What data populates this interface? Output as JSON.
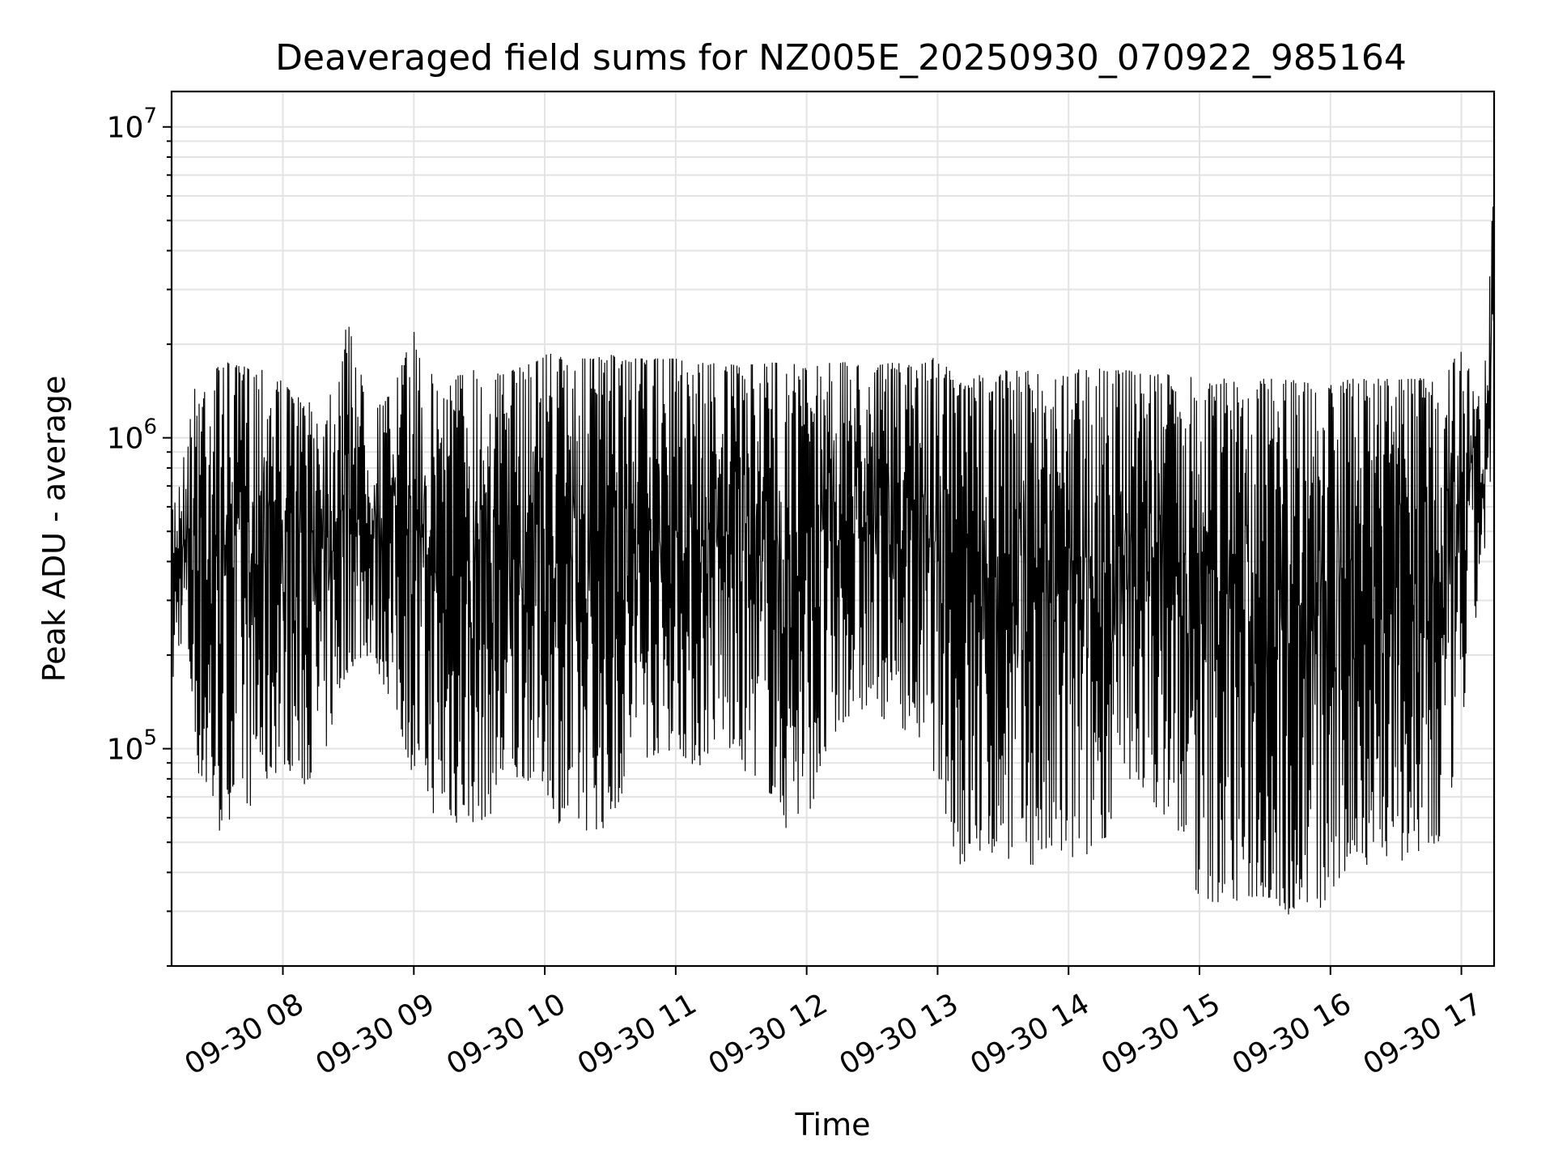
{
  "chart_data": {
    "type": "line",
    "title": "Deaveraged field sums for NZ005E_20250930_070922_985164",
    "xlabel": "Time",
    "ylabel": "Peak ADU - average",
    "yscale": "log",
    "ylim": [
      20000,
      13000000
    ],
    "xlim": [
      "2025-09-30 07:09",
      "2025-09-30 17:15"
    ],
    "grid": true,
    "x_ticks": [
      "09-30 08",
      "09-30 09",
      "09-30 10",
      "09-30 11",
      "09-30 12",
      "09-30 13",
      "09-30 14",
      "09-30 15",
      "09-30 16",
      "09-30 17"
    ],
    "y_ticks": [
      {
        "base": "10",
        "exp": "5",
        "value": 100000
      },
      {
        "base": "10",
        "exp": "6",
        "value": 1000000
      },
      {
        "base": "10",
        "exp": "7",
        "value": 10000000
      }
    ],
    "line_color": "#000000",
    "series": [
      {
        "x": [
          "2025-09-30 07:09",
          "2025-09-30 07:15",
          "2025-09-30 07:20",
          "2025-09-30 07:25",
          "2025-09-30 07:30",
          "2025-09-30 07:35",
          "2025-09-30 07:40",
          "2025-09-30 07:45",
          "2025-09-30 07:50",
          "2025-09-30 07:55",
          "2025-09-30 08:00",
          "2025-09-30 08:10",
          "2025-09-30 08:20",
          "2025-09-30 08:30",
          "2025-09-30 08:40",
          "2025-09-30 08:50",
          "2025-09-30 09:00",
          "2025-09-30 09:10",
          "2025-09-30 09:20",
          "2025-09-30 09:30",
          "2025-09-30 09:40",
          "2025-09-30 09:50",
          "2025-09-30 10:00",
          "2025-09-30 10:10",
          "2025-09-30 10:20",
          "2025-09-30 10:30",
          "2025-09-30 10:40",
          "2025-09-30 10:50",
          "2025-09-30 11:00",
          "2025-09-30 11:10",
          "2025-09-30 11:20",
          "2025-09-30 11:30",
          "2025-09-30 11:40",
          "2025-09-30 11:50",
          "2025-09-30 12:00",
          "2025-09-30 12:10",
          "2025-09-30 12:20",
          "2025-09-30 12:30",
          "2025-09-30 12:40",
          "2025-09-30 12:50",
          "2025-09-30 13:00",
          "2025-09-30 13:10",
          "2025-09-30 13:20",
          "2025-09-30 13:30",
          "2025-09-30 13:40",
          "2025-09-30 13:50",
          "2025-09-30 14:00",
          "2025-09-30 14:10",
          "2025-09-30 14:20",
          "2025-09-30 14:30",
          "2025-09-30 14:40",
          "2025-09-30 14:50",
          "2025-09-30 15:00",
          "2025-09-30 15:10",
          "2025-09-30 15:20",
          "2025-09-30 15:30",
          "2025-09-30 15:40",
          "2025-09-30 15:50",
          "2025-09-30 16:00",
          "2025-09-30 16:10",
          "2025-09-30 16:20",
          "2025-09-30 16:30",
          "2025-09-30 16:40",
          "2025-09-30 16:50",
          "2025-09-30 17:00",
          "2025-09-30 17:10",
          "2025-09-30 17:15"
        ],
        "upper": [
          600000,
          900000,
          1500000,
          1700000,
          1700000,
          1750000,
          1700000,
          1700000,
          1750000,
          1700000,
          1500000,
          1300000,
          1300000,
          2400000,
          1200000,
          1400000,
          2200000,
          1500000,
          1600000,
          1700000,
          1600000,
          1700000,
          1900000,
          1800000,
          1800000,
          1850000,
          1800000,
          1800000,
          1800000,
          1750000,
          1750000,
          1700000,
          1750000,
          1750000,
          1700000,
          1750000,
          1750000,
          1700000,
          1750000,
          1700000,
          1850000,
          1500000,
          1600000,
          1650000,
          1650000,
          1600000,
          1650000,
          1700000,
          1650000,
          1650000,
          1600000,
          1600000,
          1550000,
          1550000,
          1550000,
          1550000,
          1550000,
          1500000,
          1500000,
          1550000,
          1550000,
          1550000,
          1550000,
          1600000,
          1900000,
          1300000,
          7000000
        ],
        "lower": [
          150000,
          250000,
          90000,
          65000,
          52000,
          58000,
          70000,
          65000,
          70000,
          80000,
          90000,
          75000,
          100000,
          180000,
          200000,
          140000,
          80000,
          60000,
          57000,
          58000,
          65000,
          80000,
          75000,
          50000,
          55000,
          55000,
          90000,
          95000,
          100000,
          85000,
          110000,
          85000,
          80000,
          55000,
          60000,
          90000,
          130000,
          130000,
          120000,
          110000,
          80000,
          40000,
          45000,
          45000,
          42000,
          42000,
          42000,
          45000,
          55000,
          80000,
          65000,
          55000,
          32000,
          32000,
          32000,
          33000,
          29000,
          31000,
          30000,
          43000,
          42000,
          45000,
          40000,
          45000,
          110000,
          400000,
          700000
        ],
        "last": [
          1000000,
          500000,
          300000,
          100000,
          200000,
          150000,
          120000,
          150000,
          100000,
          300000,
          200000,
          400000,
          300000,
          400000,
          300000,
          200000,
          100000,
          500000,
          800000,
          200000,
          700000,
          900000,
          300000,
          600000,
          800000,
          700000,
          900000,
          1000000,
          900000,
          600000,
          500000,
          400000,
          300000,
          200000,
          400000,
          600000,
          800000,
          700000,
          600000,
          500000,
          400000,
          200000,
          300000,
          400000,
          500000,
          500000,
          600000,
          400000,
          300000,
          400000,
          500000,
          400000,
          300000,
          200000,
          300000,
          400000,
          300000,
          200000,
          300000,
          400000,
          500000,
          400000,
          300000,
          400000,
          600000,
          800000,
          900000
        ]
      }
    ]
  }
}
